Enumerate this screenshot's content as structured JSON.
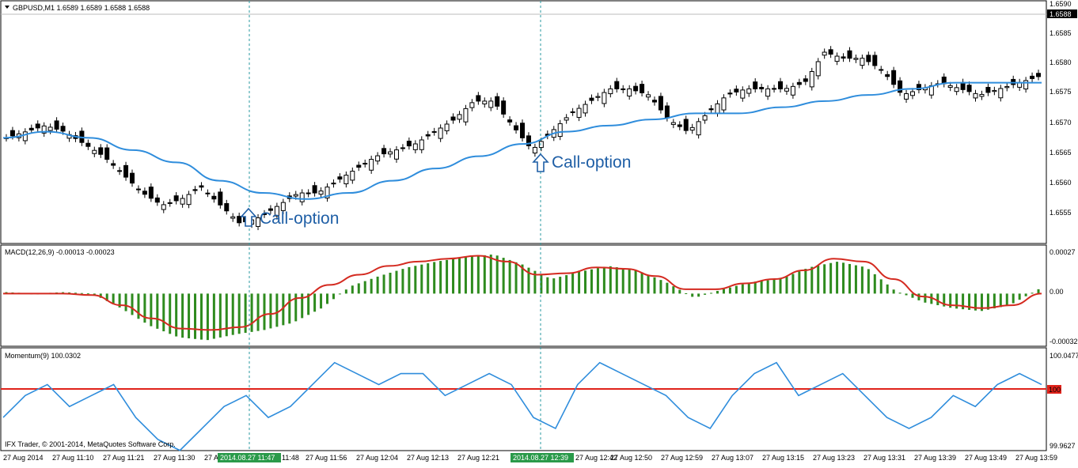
{
  "header": {
    "title": "GBPUSD,M1 1.6589 1.6589 1.6588 1.6588",
    "copyright": "IFX Trader, © 2001-2014, MetaQuotes Software Corp."
  },
  "price_panel": {
    "current_price": "1.6588",
    "y_ticks": [
      "1.6590",
      "1.6585",
      "1.6580",
      "1.6575",
      "1.6570",
      "1.6565",
      "1.6560",
      "1.6555"
    ]
  },
  "macd_panel": {
    "title": "MACD(12,26,9) -0.00013 -0.00023",
    "y_ticks": [
      "0.00027",
      "0.00",
      "-0.00032"
    ]
  },
  "momentum_panel": {
    "title": "Momentum(9) 100.0302",
    "y_ticks": [
      "100.0477",
      "100",
      "99.9627"
    ]
  },
  "time_axis": {
    "labels": [
      "27 Aug 2014",
      "27 Aug 11:10",
      "27 Aug 11:21",
      "27 Aug 11:30",
      "27 Aug",
      "11:48",
      "27 Aug 11:56",
      "27 Aug 12:04",
      "27 Aug 12:13",
      "27 Aug 12:21",
      "27 Aug 12:42",
      "27 Aug 12:50",
      "27 Aug 12:59",
      "27 Aug 13:07",
      "27 Aug 13:15",
      "27 Aug 13:23",
      "27 Aug 13:31",
      "27 Aug 13:39",
      "27 Aug 13:49",
      "27 Aug 13:59"
    ],
    "cursor_tags": [
      "2014.08.27 11:47",
      "2014.08.27 12:39"
    ]
  },
  "annotations": [
    "Call-option",
    "Call-option"
  ],
  "colors": {
    "ma_line": "#2f8ddc",
    "signal_line": "#d42a20",
    "histogram": "#2e8b1e",
    "momentum_line": "#2f8ddc",
    "momentum_level": "#e0221a",
    "annotation": "#1f5fa6",
    "cursor_tag_bg": "#2a9a4a"
  },
  "chart_data": [
    {
      "type": "candlestick",
      "symbol": "GBPUSD",
      "timeframe": "M1",
      "ylim": [
        1.6552,
        1.6591
      ],
      "open_last": 1.6588,
      "close_points_approx": [
        1.6569,
        1.657,
        1.6571,
        1.657,
        1.6568,
        1.6566,
        1.6563,
        1.656,
        1.6558,
        1.6559,
        1.6561,
        1.6558,
        1.6555,
        1.6556,
        1.6558,
        1.656,
        1.656,
        1.6562,
        1.6564,
        1.6566,
        1.6567,
        1.6568,
        1.657,
        1.6572,
        1.6575,
        1.6575,
        1.6571,
        1.6567,
        1.657,
        1.6573,
        1.6575,
        1.6577,
        1.6577,
        1.6576,
        1.6572,
        1.657,
        1.6573,
        1.6576,
        1.6577,
        1.6577,
        1.6577,
        1.6578,
        1.6583,
        1.6582,
        1.6582,
        1.658,
        1.6576,
        1.6577,
        1.6578,
        1.6577,
        1.6576,
        1.6577,
        1.6578,
        1.6579
      ],
      "ma_points_approx": [
        1.6569,
        1.657,
        1.6569,
        1.6567,
        1.6565,
        1.6562,
        1.656,
        1.6559,
        1.656,
        1.6562,
        1.6564,
        1.6566,
        1.6568,
        1.657,
        1.6571,
        1.6572,
        1.6573,
        1.6573,
        1.6574,
        1.6575,
        1.6576,
        1.6577,
        1.6578,
        1.6578,
        1.6578
      ]
    },
    {
      "type": "bar",
      "name": "MACD(12,26,9)",
      "ylim": [
        -0.00034,
        0.00029
      ],
      "histogram_approx": [
        1e-05,
        0.0,
        1e-05,
        0.0,
        -0.0001,
        -0.00022,
        -0.0003,
        -0.00032,
        -0.00028,
        -0.00025,
        -0.0002,
        -0.0001,
        5e-05,
        0.00012,
        0.00018,
        0.00022,
        0.00025,
        0.00027,
        0.0002,
        0.0001,
        0.00015,
        0.00019,
        0.00016,
        8e-05,
        -3e-05,
        3e-05,
        8e-05,
        0.0001,
        0.00018,
        0.00022,
        0.00018,
        2e-05,
        -6e-05,
        -0.0001,
        -0.00012,
        -8e-05,
        3e-05
      ],
      "signal_approx": [
        0.0,
        0.0,
        0.0,
        -1e-05,
        -8e-05,
        -0.00017,
        -0.00024,
        -0.00025,
        -0.00023,
        -0.00014,
        -3e-05,
        6e-05,
        0.00013,
        0.00019,
        0.00022,
        0.00024,
        0.00026,
        0.00022,
        0.00013,
        0.00014,
        0.00018,
        0.00017,
        0.00012,
        3e-05,
        3e-05,
        7e-05,
        0.0001,
        0.00016,
        0.00024,
        0.00022,
        0.0001,
        -2e-05,
        -8e-05,
        -0.0001,
        -8e-05,
        0.0
      ]
    },
    {
      "type": "line",
      "name": "Momentum(9)",
      "ylim": [
        99.9627,
        100.0477
      ],
      "level": 100,
      "values_approx": [
        99.99,
        100.01,
        100.02,
        100.0,
        100.01,
        100.02,
        99.99,
        99.97,
        99.96,
        99.98,
        100.0,
        100.01,
        99.99,
        100.0,
        100.02,
        100.04,
        100.03,
        100.02,
        100.03,
        100.03,
        100.01,
        100.02,
        100.03,
        100.02,
        99.99,
        99.98,
        100.02,
        100.04,
        100.03,
        100.02,
        100.01,
        99.99,
        99.98,
        100.01,
        100.03,
        100.04,
        100.01,
        100.02,
        100.03,
        100.01,
        99.99,
        99.98,
        99.99,
        100.01,
        100.0,
        100.02,
        100.03,
        100.02
      ]
    }
  ]
}
